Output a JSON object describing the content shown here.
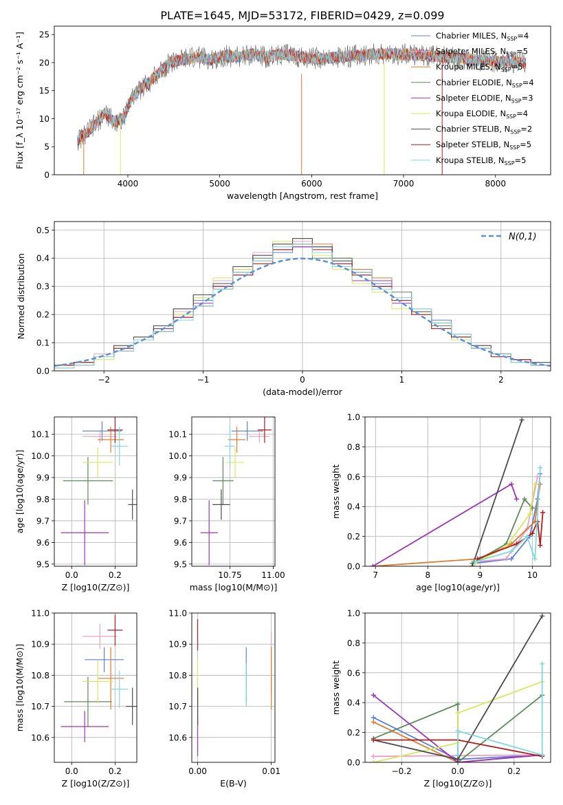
{
  "figure_title": "PLATE=1645, MJD=53172, FIBERID=0429, z=0.099",
  "models": [
    {
      "name": "Chabrier MILES",
      "n": "4",
      "color": "#5b7fd6"
    },
    {
      "name": "Salpeter MILES",
      "n": "5",
      "color": "#e9a0c8"
    },
    {
      "name": "Kroupa MILES",
      "n": "5",
      "color": "#e07b2e"
    },
    {
      "name": "Chabrier ELODIE",
      "n": "4",
      "color": "#5a8a5a"
    },
    {
      "name": "Salpeter ELODIE",
      "n": "3",
      "color": "#9b35b5"
    },
    {
      "name": "Kroupa ELODIE",
      "n": "4",
      "color": "#d8e85a"
    },
    {
      "name": "Chabrier STELIB",
      "n": "2",
      "color": "#4a4a4a"
    },
    {
      "name": "Salpeter STELIB",
      "n": "5",
      "color": "#b01c1c"
    },
    {
      "name": "Kroupa STELIB",
      "n": "5",
      "color": "#7fd8e0"
    }
  ],
  "chart_data": [
    {
      "id": "spectrum",
      "type": "line",
      "xlabel": "wavelength [Angstrom, rest frame]",
      "ylabel": "Flux [f_λ 10⁻¹⁷ erg cm⁻² s⁻¹ A⁻¹]",
      "xlim": [
        3200,
        8600
      ],
      "ylim": [
        0,
        26.5
      ],
      "xticks": [
        4000,
        5000,
        6000,
        7000,
        8000
      ],
      "yticks": [
        0,
        5,
        10,
        15,
        20,
        25
      ],
      "x": [
        3450,
        3550,
        3650,
        3750,
        3850,
        3950,
        4050,
        4150,
        4300,
        4450,
        4600,
        4750,
        4900,
        5050,
        5200,
        5350,
        5500,
        5650,
        5800,
        5950,
        6100,
        6300,
        6500,
        6700,
        6900,
        7100,
        7300,
        7500,
        7700,
        7900,
        8100,
        8300
      ],
      "y": [
        6,
        7.5,
        9,
        11,
        9.5,
        10,
        14,
        15.5,
        17.5,
        20,
        20.5,
        21,
        20.5,
        21.2,
        21,
        21.5,
        21,
        21.5,
        21.3,
        20.8,
        20.7,
        21,
        21.3,
        21.6,
        21.5,
        21.4,
        21.2,
        21,
        20.6,
        20.3,
        20.2,
        20
      ],
      "grid": false,
      "legend": "top-right"
    },
    {
      "id": "residuals",
      "type": "histogram",
      "xlabel": "(data-model)/error",
      "ylabel": "Normed distribution",
      "xlim": [
        -2.5,
        2.5
      ],
      "ylim": [
        0,
        0.53
      ],
      "xticks": [
        -2,
        -1,
        0,
        1,
        2
      ],
      "xtick_labels": [
        "−2",
        "−1",
        "0",
        "1",
        "2"
      ],
      "yticks": [
        0,
        0.1,
        0.2,
        0.3,
        0.4,
        0.5
      ],
      "ytick_labels": [
        "0.0",
        "0.1",
        "0.2",
        "0.3",
        "0.4",
        "0.5"
      ],
      "bin_edges": [
        -2.5,
        -2.3,
        -2.1,
        -1.9,
        -1.7,
        -1.5,
        -1.3,
        -1.1,
        -0.9,
        -0.7,
        -0.5,
        -0.3,
        -0.1,
        0.1,
        0.3,
        0.5,
        0.7,
        0.9,
        1.1,
        1.3,
        1.5,
        1.7,
        1.9,
        2.1,
        2.3,
        2.5
      ],
      "series": [
        {
          "values": [
            0.02,
            0.03,
            0.05,
            0.08,
            0.12,
            0.15,
            0.2,
            0.25,
            0.3,
            0.35,
            0.38,
            0.42,
            0.44,
            0.42,
            0.4,
            0.36,
            0.31,
            0.26,
            0.22,
            0.18,
            0.13,
            0.09,
            0.06,
            0.04,
            0.03
          ]
        },
        {
          "values": [
            0.02,
            0.03,
            0.06,
            0.09,
            0.12,
            0.16,
            0.21,
            0.26,
            0.32,
            0.37,
            0.42,
            0.44,
            0.46,
            0.43,
            0.39,
            0.35,
            0.3,
            0.25,
            0.2,
            0.16,
            0.12,
            0.09,
            0.06,
            0.04,
            0.02
          ]
        },
        {
          "values": [
            0.01,
            0.03,
            0.05,
            0.08,
            0.12,
            0.16,
            0.2,
            0.26,
            0.3,
            0.36,
            0.39,
            0.45,
            0.47,
            0.45,
            0.4,
            0.36,
            0.33,
            0.26,
            0.21,
            0.16,
            0.12,
            0.08,
            0.06,
            0.04,
            0.02
          ]
        },
        {
          "values": [
            0.02,
            0.03,
            0.05,
            0.08,
            0.11,
            0.15,
            0.22,
            0.27,
            0.29,
            0.35,
            0.4,
            0.43,
            0.44,
            0.4,
            0.4,
            0.34,
            0.3,
            0.28,
            0.2,
            0.16,
            0.11,
            0.08,
            0.06,
            0.03,
            0.02
          ]
        },
        {
          "values": [
            0.02,
            0.02,
            0.05,
            0.07,
            0.11,
            0.15,
            0.19,
            0.24,
            0.3,
            0.34,
            0.41,
            0.43,
            0.44,
            0.44,
            0.38,
            0.32,
            0.32,
            0.24,
            0.2,
            0.15,
            0.11,
            0.08,
            0.05,
            0.04,
            0.02
          ]
        },
        {
          "values": [
            0.02,
            0.03,
            0.04,
            0.08,
            0.12,
            0.14,
            0.2,
            0.26,
            0.33,
            0.36,
            0.38,
            0.46,
            0.45,
            0.41,
            0.36,
            0.31,
            0.28,
            0.22,
            0.2,
            0.15,
            0.11,
            0.08,
            0.05,
            0.03,
            0.02
          ]
        },
        {
          "values": [
            0.02,
            0.03,
            0.05,
            0.09,
            0.12,
            0.16,
            0.22,
            0.27,
            0.31,
            0.37,
            0.41,
            0.45,
            0.47,
            0.44,
            0.39,
            0.35,
            0.3,
            0.26,
            0.21,
            0.17,
            0.12,
            0.09,
            0.06,
            0.04,
            0.03
          ]
        },
        {
          "values": [
            0.02,
            0.03,
            0.05,
            0.08,
            0.11,
            0.14,
            0.19,
            0.23,
            0.3,
            0.34,
            0.38,
            0.43,
            0.45,
            0.43,
            0.38,
            0.34,
            0.3,
            0.25,
            0.2,
            0.15,
            0.12,
            0.08,
            0.05,
            0.04,
            0.02
          ]
        },
        {
          "values": [
            0.01,
            0.02,
            0.05,
            0.07,
            0.11,
            0.14,
            0.18,
            0.23,
            0.29,
            0.35,
            0.39,
            0.44,
            0.45,
            0.42,
            0.37,
            0.35,
            0.29,
            0.26,
            0.22,
            0.17,
            0.13,
            0.08,
            0.06,
            0.03,
            0.02
          ]
        }
      ],
      "normal_curve": {
        "label": "N(0,1)",
        "color": "#5b8fd6",
        "style": "dashed"
      },
      "legend": "top-right",
      "grid": true
    },
    {
      "id": "age-vs-z",
      "type": "scatter",
      "xlabel": "Z [log10(Z/Z⊙)]",
      "ylabel": "age [log10(age/yr)]",
      "xlim": [
        -0.08,
        0.3
      ],
      "ylim": [
        9.49,
        10.18
      ],
      "xticks": [
        0,
        0.2
      ],
      "xtick_labels": [
        "0.0",
        "0.2"
      ],
      "yticks": [
        9.5,
        9.6,
        9.7,
        9.8,
        9.9,
        10.0,
        10.1
      ],
      "ytick_labels": [
        "9.5",
        "9.6",
        "9.7",
        "9.8",
        "9.9",
        "10.0",
        "10.1"
      ],
      "points": [
        {
          "x": 0.14,
          "y": 10.115,
          "xerr": 0.09,
          "yerr": 0.045
        },
        {
          "x": 0.13,
          "y": 10.09,
          "xerr": 0.08,
          "yerr": 0.03
        },
        {
          "x": 0.18,
          "y": 10.075,
          "xerr": 0.06,
          "yerr": 0.06
        },
        {
          "x": 0.075,
          "y": 9.885,
          "xerr": 0.115,
          "yerr": 0.11
        },
        {
          "x": 0.06,
          "y": 9.645,
          "xerr": 0.11,
          "yerr": 0.15
        },
        {
          "x": 0.12,
          "y": 9.97,
          "xerr": 0.07,
          "yerr": 0.07
        },
        {
          "x": 0.28,
          "y": 9.775,
          "xerr": 0.02,
          "yerr": 0.07
        },
        {
          "x": 0.2,
          "y": 10.12,
          "xerr": 0.035,
          "yerr": 0.06
        },
        {
          "x": 0.22,
          "y": 10.045,
          "xerr": 0.04,
          "yerr": 0.09
        }
      ],
      "grid": true
    },
    {
      "id": "age-vs-mass",
      "type": "scatter",
      "xlabel": "mass [log10(M/M⊙)]",
      "ylabel": "",
      "xlim": [
        10.53,
        11.01
      ],
      "ylim": [
        9.49,
        10.18
      ],
      "xticks": [
        10.75,
        11.0
      ],
      "xtick_labels": [
        "10.75",
        "11.00"
      ],
      "yticks": [
        9.5,
        9.6,
        9.7,
        9.8,
        9.9,
        10.0,
        10.1
      ],
      "ytick_labels": [
        "9.5",
        "9.6",
        "9.7",
        "9.8",
        "9.9",
        "10.0",
        "10.1"
      ],
      "points": [
        {
          "x": 10.85,
          "y": 10.115,
          "xerr": 0.09,
          "yerr": 0.045
        },
        {
          "x": 10.92,
          "y": 10.09,
          "xerr": 0.06,
          "yerr": 0.03
        },
        {
          "x": 10.79,
          "y": 10.075,
          "xerr": 0.05,
          "yerr": 0.06
        },
        {
          "x": 10.71,
          "y": 9.885,
          "xerr": 0.06,
          "yerr": 0.11
        },
        {
          "x": 10.63,
          "y": 9.645,
          "xerr": 0.05,
          "yerr": 0.15
        },
        {
          "x": 10.78,
          "y": 9.97,
          "xerr": 0.05,
          "yerr": 0.07
        },
        {
          "x": 10.7,
          "y": 9.775,
          "xerr": 0.05,
          "yerr": 0.07
        },
        {
          "x": 10.95,
          "y": 10.12,
          "xerr": 0.04,
          "yerr": 0.06
        },
        {
          "x": 10.75,
          "y": 10.045,
          "xerr": 0.03,
          "yerr": 0.09
        }
      ],
      "grid": true
    },
    {
      "id": "weight-vs-age",
      "type": "line",
      "xlabel": "age [log10(age/yr)]",
      "ylabel": "mass weight",
      "xlim": [
        6.8,
        10.35
      ],
      "ylim": [
        0,
        1
      ],
      "xticks": [
        7,
        8,
        9,
        10
      ],
      "xtick_labels": [
        "7",
        "8",
        "9",
        "10"
      ],
      "yticks": [
        0,
        0.2,
        0.4,
        0.6,
        0.8,
        1.0
      ],
      "ytick_labels": [
        "0.0",
        "0.2",
        "0.4",
        "0.6",
        "0.8",
        "1.0"
      ],
      "series": [
        {
          "x": [
            8.9,
            9.6,
            9.95,
            10.1,
            10.15
          ],
          "y": [
            0.02,
            0.05,
            0.2,
            0.45,
            0.62
          ]
        },
        {
          "x": [
            8.9,
            9.5,
            9.9,
            10.1
          ],
          "y": [
            0.03,
            0.05,
            0.25,
            0.6
          ]
        },
        {
          "x": [
            6.95,
            9.0,
            9.6,
            10.05,
            10.15
          ],
          "y": [
            0.0,
            0.05,
            0.15,
            0.3,
            0.55
          ]
        },
        {
          "x": [
            8.85,
            9.5,
            9.85,
            10.0
          ],
          "y": [
            0.02,
            0.15,
            0.45,
            0.39
          ]
        },
        {
          "x": [
            6.95,
            9.6,
            9.7
          ],
          "y": [
            0.0,
            0.55,
            0.45
          ]
        },
        {
          "x": [
            8.9,
            9.5,
            9.95,
            10.05
          ],
          "y": [
            0.02,
            0.13,
            0.35,
            0.55
          ]
        },
        {
          "x": [
            8.85,
            9.8
          ],
          "y": [
            0.0,
            0.98
          ]
        },
        {
          "x": [
            8.95,
            9.7,
            10.0,
            10.1,
            10.15,
            10.2
          ],
          "y": [
            0.05,
            0.15,
            0.22,
            0.3,
            0.14,
            0.36
          ]
        },
        {
          "x": [
            8.9,
            9.6,
            9.9,
            10.05,
            10.15
          ],
          "y": [
            0.03,
            0.1,
            0.2,
            0.05,
            0.66
          ]
        }
      ],
      "grid": true
    },
    {
      "id": "mass-vs-z",
      "type": "scatter",
      "xlabel": "Z [log10(Z/Z⊙)]",
      "ylabel": "mass [log10(M/M⊙)]",
      "xlim": [
        -0.08,
        0.3
      ],
      "ylim": [
        10.52,
        11.0
      ],
      "xticks": [
        0,
        0.2
      ],
      "xtick_labels": [
        "0.0",
        "0.2"
      ],
      "yticks": [
        10.6,
        10.7,
        10.8,
        10.9,
        11.0
      ],
      "ytick_labels": [
        "10.6",
        "10.7",
        "10.8",
        "10.9",
        "11.0"
      ],
      "points": [
        {
          "x": 0.15,
          "y": 10.85,
          "xerr": 0.09,
          "yerr": 0.04
        },
        {
          "x": 0.13,
          "y": 10.925,
          "xerr": 0.08,
          "yerr": 0.04
        },
        {
          "x": 0.18,
          "y": 10.79,
          "xerr": 0.06,
          "yerr": 0.1
        },
        {
          "x": 0.075,
          "y": 10.715,
          "xerr": 0.11,
          "yerr": 0.08
        },
        {
          "x": 0.06,
          "y": 10.635,
          "xerr": 0.11,
          "yerr": 0.05
        },
        {
          "x": 0.12,
          "y": 10.78,
          "xerr": 0.07,
          "yerr": 0.07
        },
        {
          "x": 0.28,
          "y": 10.7,
          "xerr": 0.03,
          "yerr": 0.06
        },
        {
          "x": 0.2,
          "y": 10.945,
          "xerr": 0.035,
          "yerr": 0.05
        },
        {
          "x": 0.22,
          "y": 10.755,
          "xerr": 0.04,
          "yerr": 0.06
        }
      ],
      "grid": true
    },
    {
      "id": "mass-vs-ebv",
      "type": "scatter",
      "xlabel": "E(B-V)",
      "ylabel": "",
      "xlim": [
        -0.0008,
        0.0105
      ],
      "ylim": [
        10.52,
        11.0
      ],
      "xticks": [
        0,
        0.01
      ],
      "xtick_labels": [
        "0.00",
        "0.01"
      ],
      "yticks": [
        10.6,
        10.7,
        10.8,
        10.9,
        11.0
      ],
      "ytick_labels": [
        "10.6",
        "10.7",
        "10.8",
        "10.9",
        "11.0"
      ],
      "points": [
        {
          "x": 0.0066,
          "y": 10.8,
          "xerr": 0,
          "yerr": 0.09
        },
        {
          "x": 0.01,
          "y": 10.84,
          "xerr": 0,
          "yerr": 0.1
        },
        {
          "x": 0.01,
          "y": 10.79,
          "xerr": 0,
          "yerr": 0.1
        },
        {
          "x": 0.0,
          "y": 10.7,
          "xerr": 0,
          "yerr": 0.06
        },
        {
          "x": 0.0,
          "y": 10.6,
          "xerr": 0,
          "yerr": 0.06
        },
        {
          "x": 0.0,
          "y": 10.78,
          "xerr": 0,
          "yerr": 0.07
        },
        {
          "x": 0.0,
          "y": 10.7,
          "xerr": 0,
          "yerr": 0.06
        },
        {
          "x": 0.0,
          "y": 10.93,
          "xerr": 0,
          "yerr": 0.05
        },
        {
          "x": 0.0066,
          "y": 10.77,
          "xerr": 0,
          "yerr": 0.07
        }
      ],
      "grid": true
    },
    {
      "id": "weight-vs-z",
      "type": "line",
      "xlabel": "Z [log10(Z/Z⊙)]",
      "ylabel": "mass weight",
      "xlim": [
        -0.33,
        0.33
      ],
      "ylim": [
        0,
        1
      ],
      "xticks": [
        -0.2,
        0,
        0.2
      ],
      "xtick_labels": [
        "−0.2",
        "0.0",
        "0.2"
      ],
      "yticks": [
        0,
        0.2,
        0.4,
        0.6,
        0.8,
        1.0
      ],
      "ytick_labels": [
        "0.0",
        "0.2",
        "0.4",
        "0.6",
        "0.8",
        "1.0"
      ],
      "series": [
        {
          "x": [
            -0.3,
            0.0,
            0.3
          ],
          "y": [
            0.3,
            0.02,
            0.05
          ]
        },
        {
          "x": [
            -0.3,
            0.3
          ],
          "y": [
            0.04,
            0.05
          ]
        },
        {
          "x": [
            -0.3,
            0.0,
            0.3
          ],
          "y": [
            0.27,
            0.0,
            0.05
          ]
        },
        {
          "x": [
            -0.3,
            0.0,
            0.0,
            0.3
          ],
          "y": [
            0.16,
            0.39,
            0.0,
            0.45
          ]
        },
        {
          "x": [
            -0.3,
            0.0,
            0.3
          ],
          "y": [
            0.45,
            0.0,
            0.05
          ]
        },
        {
          "x": [
            -0.3,
            0.0,
            0.0,
            0.3
          ],
          "y": [
            0.0,
            0.13,
            0.33,
            0.54
          ]
        },
        {
          "x": [
            -0.3,
            0.0,
            0.3
          ],
          "y": [
            0.15,
            0.02,
            0.98
          ]
        },
        {
          "x": [
            -0.3,
            0.0,
            0.3
          ],
          "y": [
            0.15,
            0.15,
            0.04
          ]
        },
        {
          "x": [
            0.0,
            0.0,
            0.3,
            0.3
          ],
          "y": [
            0.05,
            0.21,
            0.05,
            0.66
          ]
        }
      ],
      "grid": true
    }
  ]
}
